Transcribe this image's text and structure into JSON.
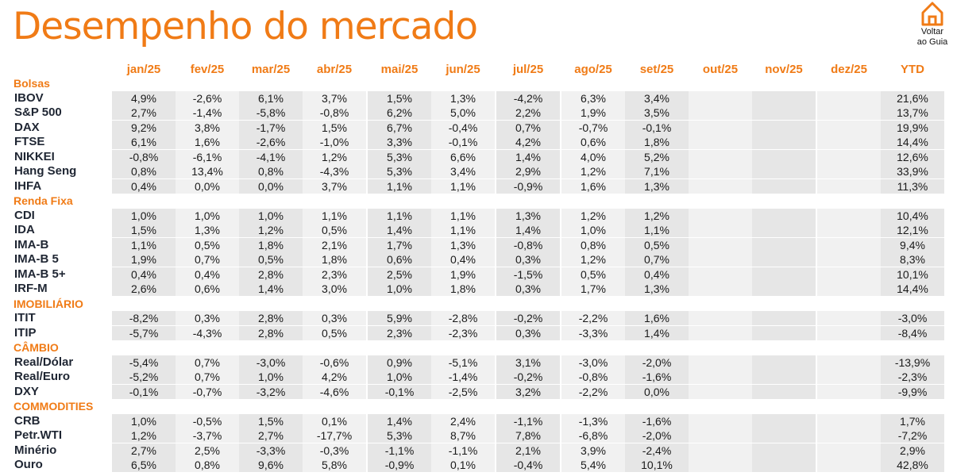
{
  "title": "Desempenho do mercado",
  "home": {
    "icon": "home-icon",
    "line1": "Voltar",
    "line2": "ao Guia",
    "accent": "#f07b16"
  },
  "columns": [
    "jan/25",
    "fev/25",
    "mar/25",
    "abr/25",
    "mai/25",
    "jun/25",
    "jul/25",
    "ago/25",
    "set/25",
    "out/25",
    "nov/25",
    "dez/25",
    "YTD"
  ],
  "sections": [
    {
      "label": "Bolsas",
      "rows": [
        {
          "name": "IBOV",
          "values": [
            "4,9%",
            "-2,6%",
            "6,1%",
            "3,7%",
            "1,5%",
            "1,3%",
            "-4,2%",
            "6,3%",
            "3,4%",
            "",
            "",
            "",
            "21,6%"
          ]
        },
        {
          "name": "S&P 500",
          "values": [
            "2,7%",
            "-1,4%",
            "-5,8%",
            "-0,8%",
            "6,2%",
            "5,0%",
            "2,2%",
            "1,9%",
            "3,5%",
            "",
            "",
            "",
            "13,7%"
          ]
        },
        {
          "name": "DAX",
          "values": [
            "9,2%",
            "3,8%",
            "-1,7%",
            "1,5%",
            "6,7%",
            "-0,4%",
            "0,7%",
            "-0,7%",
            "-0,1%",
            "",
            "",
            "",
            "19,9%"
          ]
        },
        {
          "name": "FTSE",
          "values": [
            "6,1%",
            "1,6%",
            "-2,6%",
            "-1,0%",
            "3,3%",
            "-0,1%",
            "4,2%",
            "0,6%",
            "1,8%",
            "",
            "",
            "",
            "14,4%"
          ]
        },
        {
          "name": "NIKKEI",
          "values": [
            "-0,8%",
            "-6,1%",
            "-4,1%",
            "1,2%",
            "5,3%",
            "6,6%",
            "1,4%",
            "4,0%",
            "5,2%",
            "",
            "",
            "",
            "12,6%"
          ]
        },
        {
          "name": "Hang Seng",
          "values": [
            "0,8%",
            "13,4%",
            "0,8%",
            "-4,3%",
            "5,3%",
            "3,4%",
            "2,9%",
            "1,2%",
            "7,1%",
            "",
            "",
            "",
            "33,9%"
          ]
        },
        {
          "name": "IHFA",
          "values": [
            "0,4%",
            "0,0%",
            "0,0%",
            "3,7%",
            "1,1%",
            "1,1%",
            "-0,9%",
            "1,6%",
            "1,3%",
            "",
            "",
            "",
            "11,3%"
          ]
        }
      ]
    },
    {
      "label": "Renda Fixa",
      "rows": [
        {
          "name": "CDI",
          "values": [
            "1,0%",
            "1,0%",
            "1,0%",
            "1,1%",
            "1,1%",
            "1,1%",
            "1,3%",
            "1,2%",
            "1,2%",
            "",
            "",
            "",
            "10,4%"
          ]
        },
        {
          "name": "IDA",
          "values": [
            "1,5%",
            "1,3%",
            "1,2%",
            "0,5%",
            "1,4%",
            "1,1%",
            "1,4%",
            "1,0%",
            "1,1%",
            "",
            "",
            "",
            "12,1%"
          ]
        },
        {
          "name": "IMA-B",
          "values": [
            "1,1%",
            "0,5%",
            "1,8%",
            "2,1%",
            "1,7%",
            "1,3%",
            "-0,8%",
            "0,8%",
            "0,5%",
            "",
            "",
            "",
            "9,4%"
          ]
        },
        {
          "name": "IMA-B 5",
          "values": [
            "1,9%",
            "0,7%",
            "0,5%",
            "1,8%",
            "0,6%",
            "0,4%",
            "0,3%",
            "1,2%",
            "0,7%",
            "",
            "",
            "",
            "8,3%"
          ]
        },
        {
          "name": "IMA-B 5+",
          "values": [
            "0,4%",
            "0,4%",
            "2,8%",
            "2,3%",
            "2,5%",
            "1,9%",
            "-1,5%",
            "0,5%",
            "0,4%",
            "",
            "",
            "",
            "10,1%"
          ]
        },
        {
          "name": "IRF-M",
          "values": [
            "2,6%",
            "0,6%",
            "1,4%",
            "3,0%",
            "1,0%",
            "1,8%",
            "0,3%",
            "1,7%",
            "1,3%",
            "",
            "",
            "",
            "14,4%"
          ]
        }
      ]
    },
    {
      "label": "IMOBILIÁRIO",
      "rows": [
        {
          "name": "ITIT",
          "values": [
            "-8,2%",
            "0,3%",
            "2,8%",
            "0,3%",
            "5,9%",
            "-2,8%",
            "-0,2%",
            "-2,2%",
            "1,6%",
            "",
            "",
            "",
            "-3,0%"
          ]
        },
        {
          "name": "ITIP",
          "values": [
            "-5,7%",
            "-4,3%",
            "2,8%",
            "0,5%",
            "2,3%",
            "-2,3%",
            "0,3%",
            "-3,3%",
            "1,4%",
            "",
            "",
            "",
            "-8,4%"
          ]
        }
      ]
    },
    {
      "label": "CÂMBIO",
      "rows": [
        {
          "name": "Real/Dólar",
          "values": [
            "-5,4%",
            "0,7%",
            "-3,0%",
            "-0,6%",
            "0,9%",
            "-5,1%",
            "3,1%",
            "-3,0%",
            "-2,0%",
            "",
            "",
            "",
            "-13,9%"
          ]
        },
        {
          "name": "Real/Euro",
          "values": [
            "-5,2%",
            "0,7%",
            "1,0%",
            "4,2%",
            "1,0%",
            "-1,4%",
            "-0,2%",
            "-0,8%",
            "-1,6%",
            "",
            "",
            "",
            "-2,3%"
          ]
        },
        {
          "name": "DXY",
          "values": [
            "-0,1%",
            "-0,7%",
            "-3,2%",
            "-4,6%",
            "-0,1%",
            "-2,5%",
            "3,2%",
            "-2,2%",
            "0,0%",
            "",
            "",
            "",
            "-9,9%"
          ]
        }
      ]
    },
    {
      "label": "COMMODITIES",
      "rows": [
        {
          "name": "CRB",
          "values": [
            "1,0%",
            "-0,5%",
            "1,5%",
            "0,1%",
            "1,4%",
            "2,4%",
            "-1,1%",
            "-1,3%",
            "-1,6%",
            "",
            "",
            "",
            "1,7%"
          ]
        },
        {
          "name": "Petr.WTI",
          "values": [
            "1,2%",
            "-3,7%",
            "2,7%",
            "-17,7%",
            "5,3%",
            "8,7%",
            "7,8%",
            "-6,8%",
            "-2,0%",
            "",
            "",
            "",
            "-7,2%"
          ]
        },
        {
          "name": "Minério",
          "values": [
            "2,7%",
            "2,5%",
            "-3,3%",
            "-0,3%",
            "-1,1%",
            "-1,1%",
            "2,1%",
            "3,9%",
            "-2,4%",
            "",
            "",
            "",
            "2,9%"
          ]
        },
        {
          "name": "Ouro",
          "values": [
            "6,5%",
            "0,8%",
            "9,6%",
            "5,8%",
            "-0,9%",
            "0,1%",
            "-0,4%",
            "5,4%",
            "10,1%",
            "",
            "",
            "",
            "42,8%"
          ]
        }
      ]
    }
  ]
}
